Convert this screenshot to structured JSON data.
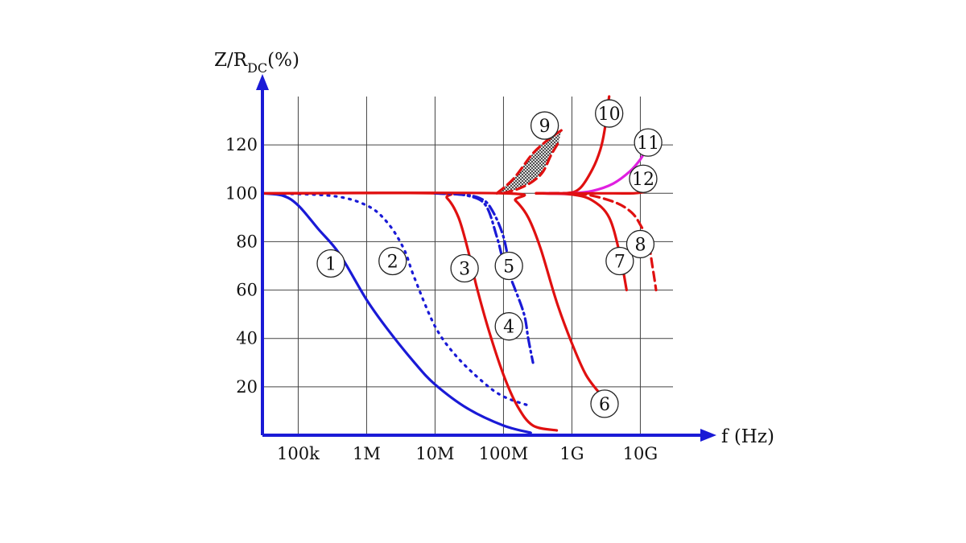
{
  "chart_data": {
    "type": "line",
    "ylabel": "Z/R",
    "ylabel_sub": "DC",
    "ylabel_unit": "(%)",
    "xlabel": "f (Hz)",
    "x_scale": "log",
    "xlim": [
      30000,
      30000000000
    ],
    "ylim": [
      0,
      140
    ],
    "x_ticks": [
      {
        "value": 100000,
        "label": "100k"
      },
      {
        "value": 1000000,
        "label": "1M"
      },
      {
        "value": 10000000,
        "label": "10M"
      },
      {
        "value": 100000000,
        "label": "100M"
      },
      {
        "value": 1000000000,
        "label": "1G"
      },
      {
        "value": 10000000000,
        "label": "10G"
      }
    ],
    "y_ticks": [
      20,
      40,
      60,
      80,
      100,
      120
    ],
    "grid": true,
    "colors": {
      "blue": "#1a1ad6",
      "red": "#e01010",
      "magenta": "#e020e0",
      "axis": "#1a1ad6"
    },
    "series": [
      {
        "label": "1",
        "color": "#1a1ad6",
        "style": "solid",
        "points": [
          [
            30000,
            100
          ],
          [
            60000,
            99
          ],
          [
            100000,
            95
          ],
          [
            200000,
            85
          ],
          [
            400000,
            75
          ],
          [
            1000000,
            56
          ],
          [
            2000000,
            44
          ],
          [
            5000000,
            30
          ],
          [
            10000000,
            21
          ],
          [
            30000000,
            11
          ],
          [
            100000000,
            4
          ],
          [
            250000000,
            1
          ]
        ]
      },
      {
        "label": "2",
        "color": "#1a1ad6",
        "style": "dotted",
        "points": [
          [
            30000,
            100
          ],
          [
            300000,
            99
          ],
          [
            1000000,
            95
          ],
          [
            2000000,
            88
          ],
          [
            3500000,
            77
          ],
          [
            5000000,
            65
          ],
          [
            10000000,
            45
          ],
          [
            20000000,
            33
          ],
          [
            50000000,
            22
          ],
          [
            100000000,
            16
          ],
          [
            250000000,
            12
          ]
        ]
      },
      {
        "label": "3",
        "color": "#e01010",
        "style": "solid",
        "points": [
          [
            30000,
            100
          ],
          [
            10000000,
            100
          ],
          [
            15000000,
            98
          ],
          [
            22000000,
            90
          ],
          [
            30000000,
            77
          ],
          [
            40000000,
            62
          ],
          [
            60000000,
            44
          ],
          [
            100000000,
            25
          ],
          [
            160000000,
            12
          ],
          [
            270000000,
            4
          ],
          [
            600000000,
            2
          ]
        ]
      },
      {
        "label": "4",
        "color": "#1a1ad6",
        "style": "dashdot",
        "points": [
          [
            10000000,
            100
          ],
          [
            30000000,
            99
          ],
          [
            55000000,
            95
          ],
          [
            80000000,
            82
          ],
          [
            100000000,
            72
          ],
          [
            140000000,
            62
          ],
          [
            200000000,
            50
          ],
          [
            230000000,
            40
          ],
          [
            270000000,
            30
          ]
        ]
      },
      {
        "label": "5",
        "color": "#1a1ad6",
        "style": "dashdot",
        "points": [
          [
            10000000,
            100
          ],
          [
            25000000,
            99.5
          ],
          [
            45000000,
            98
          ],
          [
            65000000,
            94
          ],
          [
            100000000,
            82
          ],
          [
            130000000,
            65
          ]
        ]
      },
      {
        "label": "6",
        "color": "#e01010",
        "style": "solid",
        "points": [
          [
            30000,
            100
          ],
          [
            100000000,
            100
          ],
          [
            150000000,
            97
          ],
          [
            230000000,
            90
          ],
          [
            350000000,
            77
          ],
          [
            600000000,
            55
          ],
          [
            1000000000,
            38
          ],
          [
            1600000000,
            25
          ],
          [
            2600000000,
            17
          ]
        ]
      },
      {
        "label": "7",
        "color": "#e01010",
        "style": "solid",
        "points": [
          [
            300000000,
            100
          ],
          [
            1000000000,
            99.5
          ],
          [
            2000000000,
            97
          ],
          [
            3500000000,
            90
          ],
          [
            5000000000,
            75
          ],
          [
            6300000000,
            60
          ]
        ]
      },
      {
        "label": "8",
        "color": "#e01010",
        "style": "dashed",
        "points": [
          [
            300000000,
            100
          ],
          [
            1000000000,
            100
          ],
          [
            2000000000,
            99
          ],
          [
            4500000000,
            96
          ],
          [
            7500000000,
            92
          ],
          [
            10000000000,
            87
          ],
          [
            13000000000,
            80
          ],
          [
            15000000000,
            70
          ],
          [
            17000000000,
            60
          ]
        ]
      },
      {
        "label": "9",
        "color": "#e01010",
        "style": "dashed",
        "points": [
          [
            80000000,
            100
          ],
          [
            140000000,
            106
          ],
          [
            260000000,
            116
          ],
          [
            400000000,
            121
          ],
          [
            550000000,
            124
          ],
          [
            700000000,
            126
          ]
        ]
      },
      {
        "label": "9",
        "color": "#e01010",
        "style": "dashed",
        "points": [
          [
            100000000,
            100
          ],
          [
            170000000,
            102
          ],
          [
            270000000,
            105
          ],
          [
            380000000,
            109
          ],
          [
            500000000,
            116
          ],
          [
            640000000,
            121
          ]
        ]
      },
      {
        "label": "10",
        "color": "#e01010",
        "style": "solid",
        "points": [
          [
            300000000,
            100
          ],
          [
            800000000,
            100
          ],
          [
            1300000000,
            102
          ],
          [
            2000000000,
            110
          ],
          [
            2600000000,
            118
          ],
          [
            3000000000,
            126
          ],
          [
            3500000000,
            140
          ]
        ]
      },
      {
        "label": "11",
        "color": "#e020e0",
        "style": "solid",
        "points": [
          [
            400000000,
            100
          ],
          [
            1000000000,
            100
          ],
          [
            2000000000,
            101
          ],
          [
            4000000000,
            104
          ],
          [
            7000000000,
            109
          ],
          [
            10000000000,
            114
          ],
          [
            12000000000,
            118
          ]
        ]
      },
      {
        "label": "12",
        "color": "#e01010",
        "style": "solid",
        "points": [
          [
            300000000,
            100
          ],
          [
            1000000000,
            100
          ],
          [
            4000000000,
            100
          ],
          [
            8000000000,
            100
          ],
          [
            11000000000,
            100.5
          ],
          [
            14000000000,
            101.5
          ]
        ]
      }
    ],
    "labels": [
      {
        "text": "1",
        "x": 300000,
        "y": 71
      },
      {
        "text": "2",
        "x": 2400000,
        "y": 72
      },
      {
        "text": "3",
        "x": 27000000,
        "y": 69
      },
      {
        "text": "4",
        "x": 120000000,
        "y": 45
      },
      {
        "text": "5",
        "x": 120000000,
        "y": 70
      },
      {
        "text": "6",
        "x": 3000000000,
        "y": 13
      },
      {
        "text": "7",
        "x": 5000000000,
        "y": 72
      },
      {
        "text": "8",
        "x": 10000000000,
        "y": 79
      },
      {
        "text": "9",
        "x": 400000000,
        "y": 128
      },
      {
        "text": "10",
        "x": 3500000000,
        "y": 133
      },
      {
        "text": "11",
        "x": 13000000000,
        "y": 121
      },
      {
        "text": "12",
        "x": 11000000000,
        "y": 106
      }
    ]
  }
}
